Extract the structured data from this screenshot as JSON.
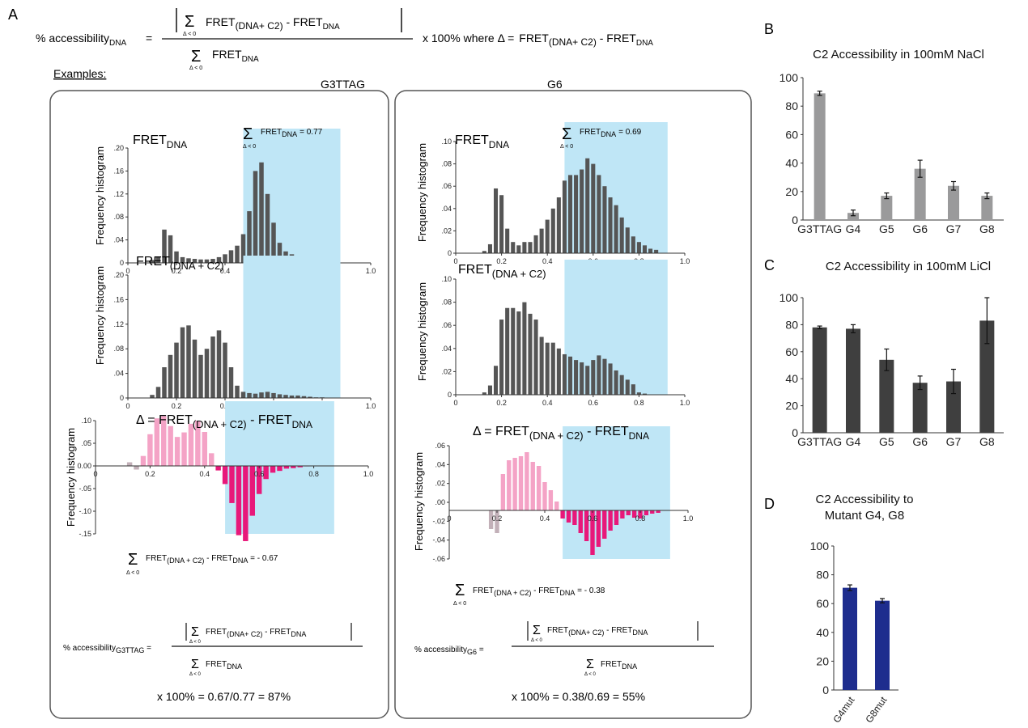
{
  "panel_labels": {
    "a": "A",
    "b": "B",
    "c": "C",
    "d": "D"
  },
  "formula": {
    "prefix": "% accessibility",
    "prefix_sub": "DNA",
    "sigma_sub": "Δ < 0",
    "term_fret": "FRET",
    "term_fret_sub": "(DNA+ C2)",
    "term_minus": " - FRET",
    "term_minus_sub": "DNA",
    "denominator": "FRET",
    "denominator_sub": "DNA",
    "times": "x 100%  where Δ =",
    "delta_def_fret": "FRET",
    "delta_def_sub": "(DNA+ C2)",
    "delta_def_minus": " - FRET",
    "delta_def_minus_sub": "DNA"
  },
  "examples_label": "Examples:",
  "colors": {
    "bar_dark": "#555555",
    "bar_gray": "#9a9a9b",
    "bar_blue": "#1e2d8e",
    "pink_light": "#f4a3c6",
    "pink_dark": "#e8187a",
    "neg_gray": "#c2b0b8",
    "highlight": "#bfe6f6"
  },
  "example_left": {
    "title": "G3TTAG",
    "hist_ylabel": "Frequency histogram",
    "fret_dna_label": "FRET",
    "fret_dna_sub": "DNA",
    "sum_annotation": "FRET",
    "sum_annotation_sub": "DNA",
    "sum_annotation_value": "= 0.77",
    "fret_c2_label": "FRET",
    "fret_c2_sub": "(DNA + C2)",
    "delta_label": "Δ = FRET",
    "delta_label_sub": "(DNA + C2)",
    "delta_label_end": " - FRET",
    "delta_label_end_sub": "DNA",
    "sum_neg": "FRET",
    "sum_neg_sub": "(DNA + C2)",
    "sum_neg_mid": " - FRET",
    "sum_neg_mid_sub": "DNA",
    "sum_neg_value": " = - 0.67",
    "acc_prefix": "% accessibility",
    "acc_prefix_sub": "G3TTAG",
    "acc_num_fret": "FRET",
    "acc_num_sub": "(DNA+ C2)",
    "acc_num_minus": " - FRET",
    "acc_num_minus_sub": "DNA",
    "acc_den": "FRET",
    "acc_den_sub": "DNA",
    "result": "x 100% = 0.67/0.77 = 87%"
  },
  "example_right": {
    "title": "G6",
    "hist_ylabel": "Frequency histogram",
    "fret_dna_label": "FRET",
    "fret_dna_sub": "DNA",
    "sum_annotation": "FRET",
    "sum_annotation_sub": "DNA",
    "sum_annotation_value": "= 0.69",
    "fret_c2_label": "FRET",
    "fret_c2_sub": "(DNA + C2)",
    "delta_label": "Δ = FRET",
    "delta_label_sub": "(DNA + C2)",
    "delta_label_end": " - FRET",
    "delta_label_end_sub": "DNA",
    "sum_neg": "FRET",
    "sum_neg_sub": "(DNA + C2)",
    "sum_neg_mid": " - FRET",
    "sum_neg_mid_sub": "DNA",
    "sum_neg_value": " = - 0.38",
    "acc_prefix": "% accessibility",
    "acc_prefix_sub": "G6",
    "acc_num_fret": "FRET",
    "acc_num_sub": "(DNA+ C2)",
    "acc_num_minus": " - FRET",
    "acc_num_minus_sub": "DNA",
    "acc_den": "FRET",
    "acc_den_sub": "DNA",
    "result": "x 100% = 0.38/0.69 = 55%"
  },
  "chart_data": [
    {
      "id": "A-G3TTAG-fret-dna",
      "type": "bar",
      "xlim": [
        0,
        1.0
      ],
      "ylim": [
        0,
        0.2
      ],
      "xticks": [
        "0",
        "0.2",
        "0.4",
        "0.6",
        "0.8",
        "1.0"
      ],
      "yticks": [
        "0",
        ".04",
        ".08",
        ".12",
        ".16",
        ".20"
      ],
      "bin_width": 0.025,
      "x_start": 0.1,
      "highlight_range": [
        0.475,
        0.875
      ],
      "values": [
        0.005,
        0.01,
        0.058,
        0.048,
        0.02,
        0.01,
        0.008,
        0.007,
        0.006,
        0.006,
        0.007,
        0.01,
        0.015,
        0.022,
        0.03,
        0.05,
        0.09,
        0.16,
        0.175,
        0.12,
        0.07,
        0.035,
        0.02,
        0.015,
        0.01,
        0.008,
        0.005,
        0.002,
        0.001
      ]
    },
    {
      "id": "A-G3TTAG-fret-c2",
      "type": "bar",
      "xlim": [
        0,
        1.0
      ],
      "ylim": [
        0,
        0.2
      ],
      "xticks": [
        "0",
        "0.2",
        "0.4",
        "0.6",
        "0.8",
        "1.0"
      ],
      "yticks": [
        "0",
        ".04",
        ".08",
        ".12",
        ".16",
        ".20"
      ],
      "bin_width": 0.025,
      "x_start": 0.1,
      "highlight_range": [
        0.475,
        0.875
      ],
      "values": [
        0.005,
        0.018,
        0.05,
        0.07,
        0.09,
        0.115,
        0.118,
        0.095,
        0.07,
        0.08,
        0.1,
        0.11,
        0.09,
        0.05,
        0.02,
        0.01,
        0.008,
        0.007,
        0.009,
        0.01,
        0.008,
        0.006,
        0.005,
        0.004,
        0.004,
        0.003,
        0.002,
        0.001,
        0.001
      ]
    },
    {
      "id": "A-G3TTAG-delta",
      "type": "bar",
      "xlim": [
        0,
        1.0
      ],
      "ylim": [
        -0.15,
        0.1
      ],
      "xticks": [
        "0",
        "0.2",
        "0.4",
        "0.6",
        "0.8",
        "1.0"
      ],
      "yticks": [
        "-.15",
        "-.10",
        "-.05",
        "0.00",
        ".05",
        ".10"
      ],
      "bin_width": 0.025,
      "x_start": 0.1,
      "highlight_range": [
        0.475,
        0.875
      ],
      "values": [
        0.0,
        0.008,
        -0.008,
        0.022,
        0.07,
        0.105,
        0.11,
        0.088,
        0.064,
        0.074,
        0.093,
        0.1,
        0.075,
        0.028,
        -0.01,
        -0.04,
        -0.082,
        -0.153,
        -0.166,
        -0.11,
        -0.062,
        -0.029,
        -0.015,
        -0.011,
        -0.006,
        -0.005,
        -0.003,
        -0.001,
        0.0
      ]
    },
    {
      "id": "A-G6-fret-dna",
      "type": "bar",
      "xlim": [
        0,
        1.0
      ],
      "ylim": [
        0,
        0.1
      ],
      "xticks": [
        "0",
        "0.2",
        "0.4",
        "0.6",
        "0.8",
        "1.0"
      ],
      "yticks": [
        "0",
        ".02",
        ".04",
        ".06",
        ".08",
        ".10"
      ],
      "bin_width": 0.025,
      "x_start": 0.125,
      "highlight_range": [
        0.475,
        0.925
      ],
      "values": [
        0.002,
        0.008,
        0.058,
        0.052,
        0.022,
        0.01,
        0.007,
        0.01,
        0.01,
        0.016,
        0.022,
        0.03,
        0.04,
        0.05,
        0.065,
        0.07,
        0.07,
        0.075,
        0.085,
        0.08,
        0.07,
        0.06,
        0.05,
        0.043,
        0.032,
        0.023,
        0.015,
        0.01,
        0.007,
        0.004,
        0.003
      ]
    },
    {
      "id": "A-G6-fret-c2",
      "type": "bar",
      "xlim": [
        0,
        1.0
      ],
      "ylim": [
        0,
        0.1
      ],
      "xticks": [
        "0",
        "0.2",
        "0.4",
        "0.6",
        "0.8",
        "1.0"
      ],
      "yticks": [
        "0",
        ".02",
        ".04",
        ".06",
        ".08",
        ".10"
      ],
      "bin_width": 0.025,
      "x_start": 0.125,
      "highlight_range": [
        0.475,
        0.925
      ],
      "values": [
        0.002,
        0.008,
        0.025,
        0.065,
        0.075,
        0.075,
        0.072,
        0.08,
        0.07,
        0.065,
        0.05,
        0.045,
        0.045,
        0.04,
        0.035,
        0.033,
        0.03,
        0.028,
        0.025,
        0.03,
        0.034,
        0.031,
        0.027,
        0.021,
        0.017,
        0.013,
        0.009,
        0.002,
        0.001,
        0.0,
        0.0
      ]
    },
    {
      "id": "A-G6-delta",
      "type": "bar",
      "xlim": [
        0,
        1.0
      ],
      "ylim": [
        -0.06,
        0.08
      ],
      "xticks": [
        "0",
        "0.2",
        "0.4",
        "0.6",
        "0.8",
        "1.0"
      ],
      "yticks": [
        "-.06",
        "-.04",
        "-.02",
        ".00",
        ".02",
        ".04",
        ".06"
      ],
      "bin_width": 0.025,
      "x_start": 0.125,
      "highlight_range": [
        0.475,
        0.925
      ],
      "values": [
        0.0,
        0.0,
        -0.023,
        -0.028,
        0.045,
        0.062,
        0.065,
        0.067,
        0.072,
        0.06,
        0.055,
        0.035,
        0.025,
        0.011,
        -0.01,
        -0.015,
        -0.018,
        -0.028,
        -0.038,
        -0.055,
        -0.045,
        -0.035,
        -0.025,
        -0.018,
        -0.01,
        -0.006,
        -0.009,
        -0.01,
        -0.006,
        -0.004,
        -0.003
      ]
    },
    {
      "id": "B",
      "type": "bar",
      "title": "C2 Accessibility in 100mM NaCl",
      "categories": [
        "G3TTAG",
        "G4",
        "G5",
        "G6",
        "G7",
        "G8"
      ],
      "values": [
        89,
        5,
        17,
        36,
        24,
        17
      ],
      "errors": [
        1.5,
        2,
        2,
        6,
        3,
        2
      ],
      "ylim": [
        0,
        100
      ],
      "yticks": [
        "0",
        "20",
        "40",
        "60",
        "80",
        "100"
      ]
    },
    {
      "id": "C",
      "type": "bar",
      "title": "C2 Accessibility in 100mM LiCl",
      "categories": [
        "G3TTAG",
        "G4",
        "G5",
        "G6",
        "G7",
        "G8"
      ],
      "values": [
        78,
        77,
        54,
        37,
        38,
        83
      ],
      "errors": [
        1,
        3,
        8,
        5,
        9,
        17
      ],
      "ylim": [
        0,
        100
      ],
      "yticks": [
        "0",
        "20",
        "40",
        "60",
        "80",
        "100"
      ]
    },
    {
      "id": "D",
      "type": "bar",
      "title": "C2 Accessibility to",
      "subtitle": "Mutant G4, G8",
      "categories": [
        "G4mut",
        "G8mut"
      ],
      "values": [
        71,
        62
      ],
      "errors": [
        2,
        1.5
      ],
      "ylim": [
        0,
        100
      ],
      "yticks": [
        "0",
        "20",
        "40",
        "60",
        "80",
        "100"
      ]
    }
  ]
}
